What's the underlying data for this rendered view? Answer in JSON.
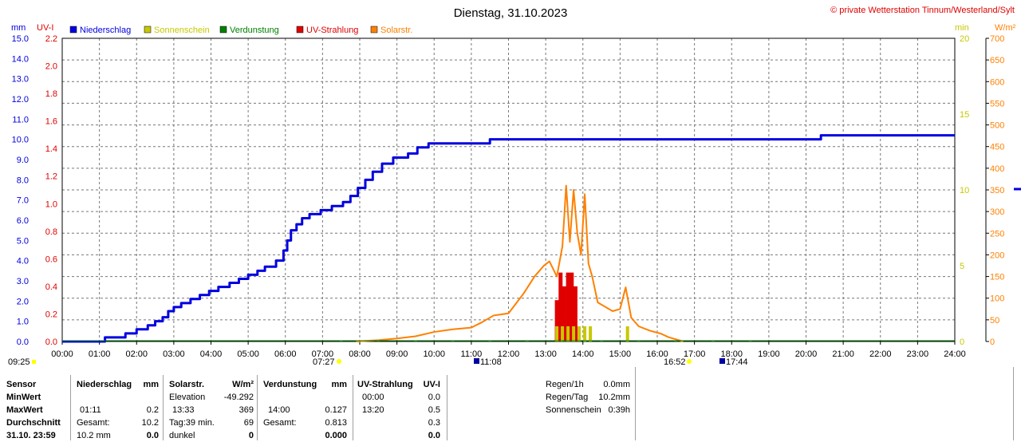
{
  "title": "Dienstag, 31.10.2023",
  "copyright": "© private Wetterstation Tinnum/Westerland/Sylt",
  "units": {
    "mm": "mm",
    "uvi": "UV-I",
    "min": "min",
    "wm2": "W/m²"
  },
  "legend": [
    {
      "label": "Niederschlag",
      "color": "#0000e0"
    },
    {
      "label": "Sonnenschein",
      "color": "#c8c800"
    },
    {
      "label": "Verdunstung",
      "color": "#008000"
    },
    {
      "label": "UV-Strahlung",
      "color": "#e00000"
    },
    {
      "label": "Solarstr.",
      "color": "#ff8000"
    }
  ],
  "events": {
    "moonrise": "09:25",
    "sunrise": "07:27",
    "noon": "11:08",
    "sunset": "16:52",
    "moonset": "17:44"
  },
  "chart_data": {
    "type": "line",
    "x_labels": [
      "00:00",
      "01:00",
      "02:00",
      "03:00",
      "04:00",
      "05:00",
      "06:00",
      "07:00",
      "08:00",
      "09:00",
      "10:00",
      "11:00",
      "12:00",
      "13:00",
      "14:00",
      "15:00",
      "16:00",
      "17:00",
      "18:00",
      "19:00",
      "20:00",
      "21:00",
      "22:00",
      "23:00",
      "24:00"
    ],
    "xlim": [
      0,
      24
    ],
    "axes": {
      "mm": {
        "ticks": [
          "0.0",
          "1.0",
          "2.0",
          "3.0",
          "4.0",
          "5.0",
          "6.0",
          "7.0",
          "8.0",
          "9.0",
          "10.0",
          "11.0",
          "12.0",
          "13.0",
          "14.0",
          "15.0"
        ],
        "ylim": [
          0,
          15
        ]
      },
      "uvi": {
        "ticks": [
          "0.0",
          "0.2",
          "0.4",
          "0.6",
          "0.8",
          "1.0",
          "1.2",
          "1.4",
          "1.6",
          "1.8",
          "2.0",
          "2.2"
        ],
        "ylim": [
          0,
          2.2
        ]
      },
      "min": {
        "ticks": [
          "0",
          "5",
          "10",
          "15",
          "20"
        ],
        "ylim": [
          0,
          20
        ]
      },
      "wm2": {
        "ticks": [
          "0",
          "50",
          "100",
          "150",
          "200",
          "250",
          "300",
          "350",
          "400",
          "450",
          "500",
          "550",
          "600",
          "650",
          "700"
        ],
        "ylim": [
          0,
          700
        ]
      }
    },
    "series": [
      {
        "name": "Niederschlag",
        "axis": "mm",
        "step": true,
        "color": "#0000e0",
        "x": [
          0,
          1.15,
          1.7,
          2.0,
          2.3,
          2.5,
          2.7,
          2.85,
          3.0,
          3.2,
          3.45,
          3.7,
          3.95,
          4.2,
          4.5,
          4.75,
          5.0,
          5.25,
          5.45,
          5.75,
          5.95,
          6.05,
          6.15,
          6.3,
          6.45,
          6.65,
          6.95,
          7.25,
          7.55,
          7.75,
          7.95,
          8.15,
          8.35,
          8.6,
          8.9,
          9.3,
          9.55,
          9.85,
          11.5,
          20.4,
          24
        ],
        "y": [
          0,
          0.2,
          0.4,
          0.6,
          0.8,
          1.0,
          1.2,
          1.5,
          1.7,
          1.9,
          2.1,
          2.3,
          2.5,
          2.7,
          2.9,
          3.1,
          3.3,
          3.5,
          3.7,
          4.0,
          4.5,
          5.0,
          5.5,
          5.8,
          6.1,
          6.3,
          6.5,
          6.7,
          6.9,
          7.2,
          7.6,
          8.0,
          8.4,
          8.8,
          9.1,
          9.3,
          9.6,
          9.8,
          10.0,
          10.2,
          10.2
        ]
      },
      {
        "name": "Solarstr.",
        "axis": "wm2",
        "color": "#ff8000",
        "x": [
          7.9,
          8.5,
          9.0,
          9.5,
          10.0,
          10.5,
          11.0,
          11.3,
          11.6,
          12.0,
          12.4,
          12.7,
          12.95,
          13.1,
          13.3,
          13.45,
          13.55,
          13.65,
          13.75,
          13.85,
          13.95,
          14.05,
          14.15,
          14.25,
          14.4,
          14.6,
          14.8,
          15.0,
          15.15,
          15.3,
          15.5,
          15.8,
          16.1,
          16.3,
          16.5,
          16.7
        ],
        "y": [
          0,
          3,
          7,
          12,
          22,
          28,
          32,
          45,
          60,
          65,
          110,
          150,
          175,
          185,
          150,
          220,
          360,
          230,
          350,
          250,
          200,
          340,
          180,
          150,
          90,
          80,
          70,
          75,
          125,
          55,
          35,
          25,
          18,
          10,
          5,
          0
        ]
      },
      {
        "name": "UV-Strahlung",
        "axis": "uvi",
        "type": "bar",
        "color": "#e00000",
        "x": [
          13.3,
          13.4,
          13.5,
          13.6,
          13.7,
          13.8
        ],
        "y": [
          0.3,
          0.5,
          0.4,
          0.5,
          0.5,
          0.4
        ]
      },
      {
        "name": "Sonnenschein",
        "axis": "min",
        "type": "bar",
        "color": "#c8c800",
        "x": [
          13.3,
          13.45,
          13.6,
          13.75,
          13.9,
          14.05,
          14.2,
          15.2
        ],
        "y": [
          1,
          1,
          1,
          1,
          1,
          1,
          1,
          1
        ]
      },
      {
        "name": "Verdunstung",
        "axis": "mm",
        "type": "bar",
        "color": "#008000",
        "x": [
          7.5,
          8.5,
          9.5,
          10.5,
          11.5,
          12.5,
          13.5,
          14.5,
          15.5,
          16.5,
          17.5,
          18.5
        ],
        "y": [
          0,
          0.003,
          0.005,
          0.008,
          0.01,
          0.01,
          0.01,
          0.01,
          0.008,
          0.005,
          0.003,
          0
        ]
      }
    ]
  },
  "table": {
    "sensor": {
      "header": "Sensor",
      "rows": [
        "MinWert",
        "MaxWert",
        "Durchschnitt",
        "31.10. 23:59"
      ]
    },
    "niederschlag": {
      "header": "Niederschlag",
      "unit": "mm",
      "labels": [
        "",
        "01:11",
        "Gesamt:",
        "10.2 mm"
      ],
      "values": [
        "",
        "0.2",
        "10.2",
        "0.0"
      ]
    },
    "solar": {
      "header": "Solarstr.",
      "unit": "W/m²",
      "labels": [
        "Elevation",
        "13:33",
        "Tag:39 min.",
        "dunkel"
      ],
      "values": [
        "-49.292",
        "369",
        "69",
        "0"
      ]
    },
    "verdunstung": {
      "header": "Verdunstung",
      "unit": "mm",
      "labels": [
        "",
        "14:00",
        "Gesamt:",
        ""
      ],
      "values": [
        "",
        "0.127",
        "0.813",
        "0.000"
      ]
    },
    "uv": {
      "header": "UV-Strahlung",
      "unit": "UV-I",
      "labels": [
        "00:00",
        "13:20",
        "",
        ""
      ],
      "values": [
        "0.0",
        "0.5",
        "0.3",
        "0.0"
      ]
    },
    "summary": [
      {
        "label": "Regen/1h",
        "value": "0.0mm"
      },
      {
        "label": "Regen/Tag",
        "value": "10.2mm"
      },
      {
        "label": "Sonnenschein",
        "value": "0:39h"
      }
    ]
  }
}
